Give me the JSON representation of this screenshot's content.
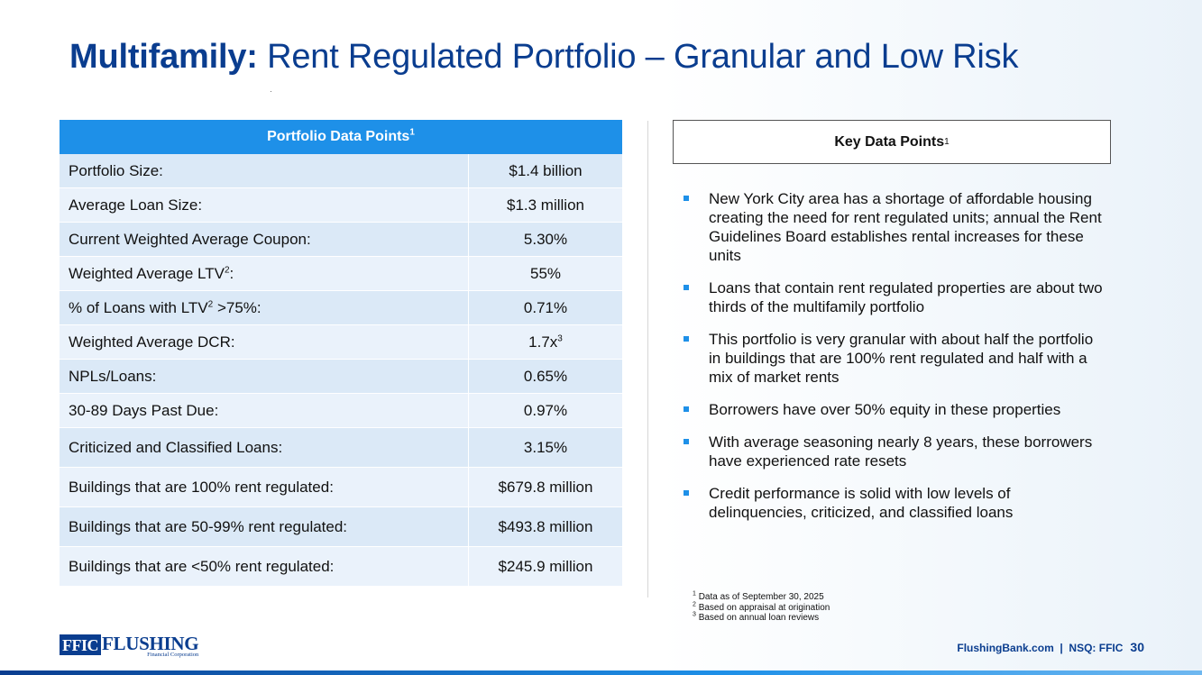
{
  "title": {
    "bold": "Multifamily:",
    "rest": "Rent Regulated Portfolio – Granular and Low Risk"
  },
  "table": {
    "header": "Portfolio Data Points",
    "header_sup": "1",
    "rows": [
      {
        "label": "Portfolio Size:",
        "value": "$1.4 billion"
      },
      {
        "label": "Average Loan Size:",
        "value": "$1.3 million"
      },
      {
        "label": "Current Weighted Average Coupon:",
        "value": "5.30%"
      },
      {
        "label_pre": "Weighted Average LTV",
        "label_sup": "2",
        "label_post": ":",
        "value": "55%"
      },
      {
        "label_pre": "% of Loans with LTV",
        "label_sup": "2",
        "label_post": " >75%:",
        "value": "0.71%"
      },
      {
        "label": "Weighted Average DCR:",
        "value_pre": "1.7x",
        "value_sup": "3"
      },
      {
        "label": "NPLs/Loans:",
        "value": "0.65%"
      },
      {
        "label": "30-89 Days Past Due:",
        "value": "0.97%"
      },
      {
        "label": "Criticized and Classified Loans:",
        "value": "3.15%"
      },
      {
        "label": "Buildings that are 100% rent regulated:",
        "value": "$679.8 million"
      },
      {
        "label": "Buildings that are 50-99% rent regulated:",
        "value": "$493.8 million"
      },
      {
        "label": "Buildings that are <50% rent regulated:",
        "value": "$245.9 million"
      }
    ]
  },
  "key_points": {
    "title": "Key Data Points",
    "title_sup": "1",
    "bullets": [
      "New York City area has a shortage of affordable housing creating the need for rent regulated units; annual the Rent Guidelines Board establishes rental increases for these units",
      "Loans that contain rent regulated properties are about two thirds of the multifamily portfolio",
      "This portfolio is very granular with about half the portfolio in buildings that are 100% rent regulated and half with a mix of market rents",
      "Borrowers have over 50% equity in these properties",
      "With average seasoning nearly 8 years, these borrowers have experienced rate resets",
      "Credit performance is solid with low levels of delinquencies, criticized, and classified loans"
    ]
  },
  "footnotes": [
    {
      "num": "1",
      "text": "Data as of September 30, 2025"
    },
    {
      "num": "2",
      "text": "Based on appraisal at origination"
    },
    {
      "num": "3",
      "text": "Based on annual loan reviews"
    }
  ],
  "logo": {
    "ffic": "FFIC",
    "flushing": "FLUSHING",
    "sub": "Financial Corporation"
  },
  "footer": {
    "text": "FlushingBank.com  |  NSQ: FFIC",
    "page": "30"
  },
  "colors": {
    "brand_navy": "#0a3d8f",
    "brand_blue": "#1e90e8",
    "row_light": "#eaf2fb",
    "row_dark": "#dbe9f7"
  }
}
